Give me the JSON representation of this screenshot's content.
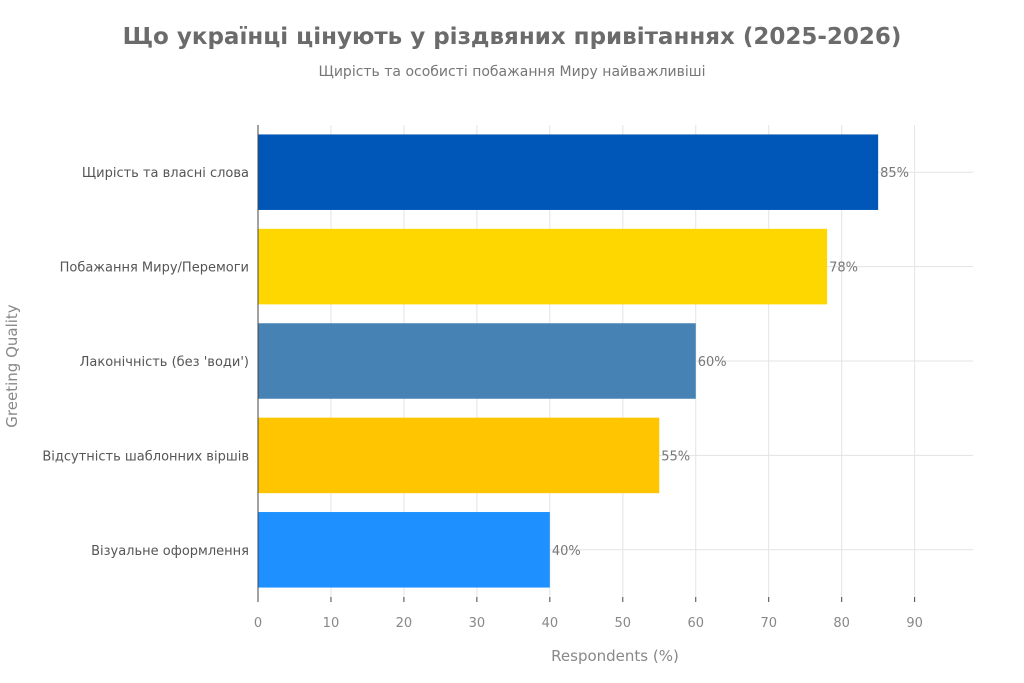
{
  "chart_data": {
    "type": "bar",
    "orientation": "horizontal",
    "title": "Що українці цінують у різдвяних привітаннях (2025-2026)",
    "subtitle": "Щирість та особисті побажання Миру найважливіші",
    "xlabel": "Respondents (%)",
    "ylabel": "Greeting Quality",
    "categories": [
      "Щирість та власні слова",
      "Побажання Миру/Перемоги",
      "Лаконічність (без 'води')",
      "Відсутність шаблонних віршів",
      "Візуальне оформлення"
    ],
    "values": [
      85,
      78,
      60,
      55,
      40
    ],
    "data_labels": [
      "85%",
      "78%",
      "60%",
      "55%",
      "40%"
    ],
    "colors": [
      "#0057B7",
      "#FFD700",
      "#4682B4",
      "#FFC500",
      "#1E90FF"
    ],
    "xlim": [
      0,
      98
    ],
    "xticks": [
      0,
      10,
      20,
      30,
      40,
      50,
      60,
      70,
      80,
      90
    ],
    "grid": true,
    "legend": "none"
  }
}
